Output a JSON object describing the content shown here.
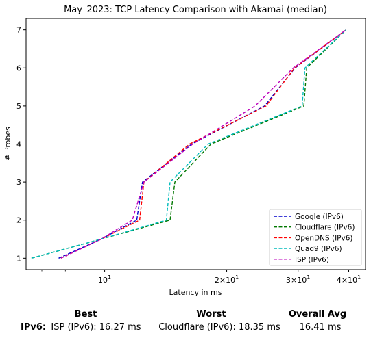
{
  "chart_data": {
    "type": "line",
    "title": "May_2023: TCP Latency Comparison with Akamai (median)",
    "xlabel": "Latency in ms",
    "ylabel": "# Probes",
    "xscale": "log",
    "xlim": [
      6.4,
      44
    ],
    "ylim": [
      0.7,
      7.3
    ],
    "yticks": [
      1,
      2,
      3,
      4,
      5,
      6,
      7
    ],
    "xticks_major": [
      {
        "value": 10,
        "base": "10",
        "exp": "1"
      },
      {
        "value": 20,
        "base": "2×10",
        "exp": "1"
      },
      {
        "value": 30,
        "base": "3×10",
        "exp": "1"
      },
      {
        "value": 40,
        "base": "4×10",
        "exp": "1"
      }
    ],
    "xticks_minor": [
      7,
      8,
      9,
      20,
      30,
      40
    ],
    "legend_position": "lower right",
    "grid": false,
    "series": [
      {
        "name": "Google (IPv6)",
        "color": "#0000cc",
        "x": [
          7.7,
          9.8,
          12.0,
          12.4,
          16.4,
          24.8,
          29.5,
          39.4
        ],
        "y": [
          1,
          1.5,
          2,
          3,
          4,
          5,
          6,
          7
        ]
      },
      {
        "name": "Cloudflare (IPv6)",
        "color": "#007700",
        "x": [
          6.6,
          9.8,
          14.5,
          14.9,
          18.3,
          31.0,
          31.5,
          39.4
        ],
        "y": [
          1,
          1.5,
          2,
          3,
          4,
          5,
          6,
          7
        ]
      },
      {
        "name": "OpenDNS (IPv6)",
        "color": "#ff0000",
        "x": [
          7.8,
          9.8,
          12.2,
          12.5,
          16.2,
          25.0,
          29.4,
          39.4
        ],
        "y": [
          1,
          1.5,
          2,
          3,
          4,
          5,
          6,
          7
        ]
      },
      {
        "name": "Quad9 (IPv6)",
        "color": "#00bbbb",
        "x": [
          6.6,
          9.8,
          14.2,
          14.5,
          18.0,
          30.7,
          31.2,
          39.4
        ],
        "y": [
          1,
          1.5,
          2,
          3,
          4,
          5,
          6,
          7
        ]
      },
      {
        "name": "ISP (IPv6)",
        "color": "#bb00bb",
        "x": [
          7.8,
          9.8,
          11.7,
          12.5,
          16.5,
          23.5,
          29.2,
          39.4
        ],
        "y": [
          1,
          1.5,
          2,
          3,
          4,
          5,
          6,
          7
        ]
      }
    ]
  },
  "summary": {
    "headers": {
      "best": "Best",
      "worst": "Worst",
      "overall": "Overall Avg"
    },
    "row_label": "IPv6:",
    "best": "ISP (IPv6): 16.27 ms",
    "worst": "Cloudflare (IPv6): 18.35 ms",
    "overall": "16.41 ms"
  }
}
